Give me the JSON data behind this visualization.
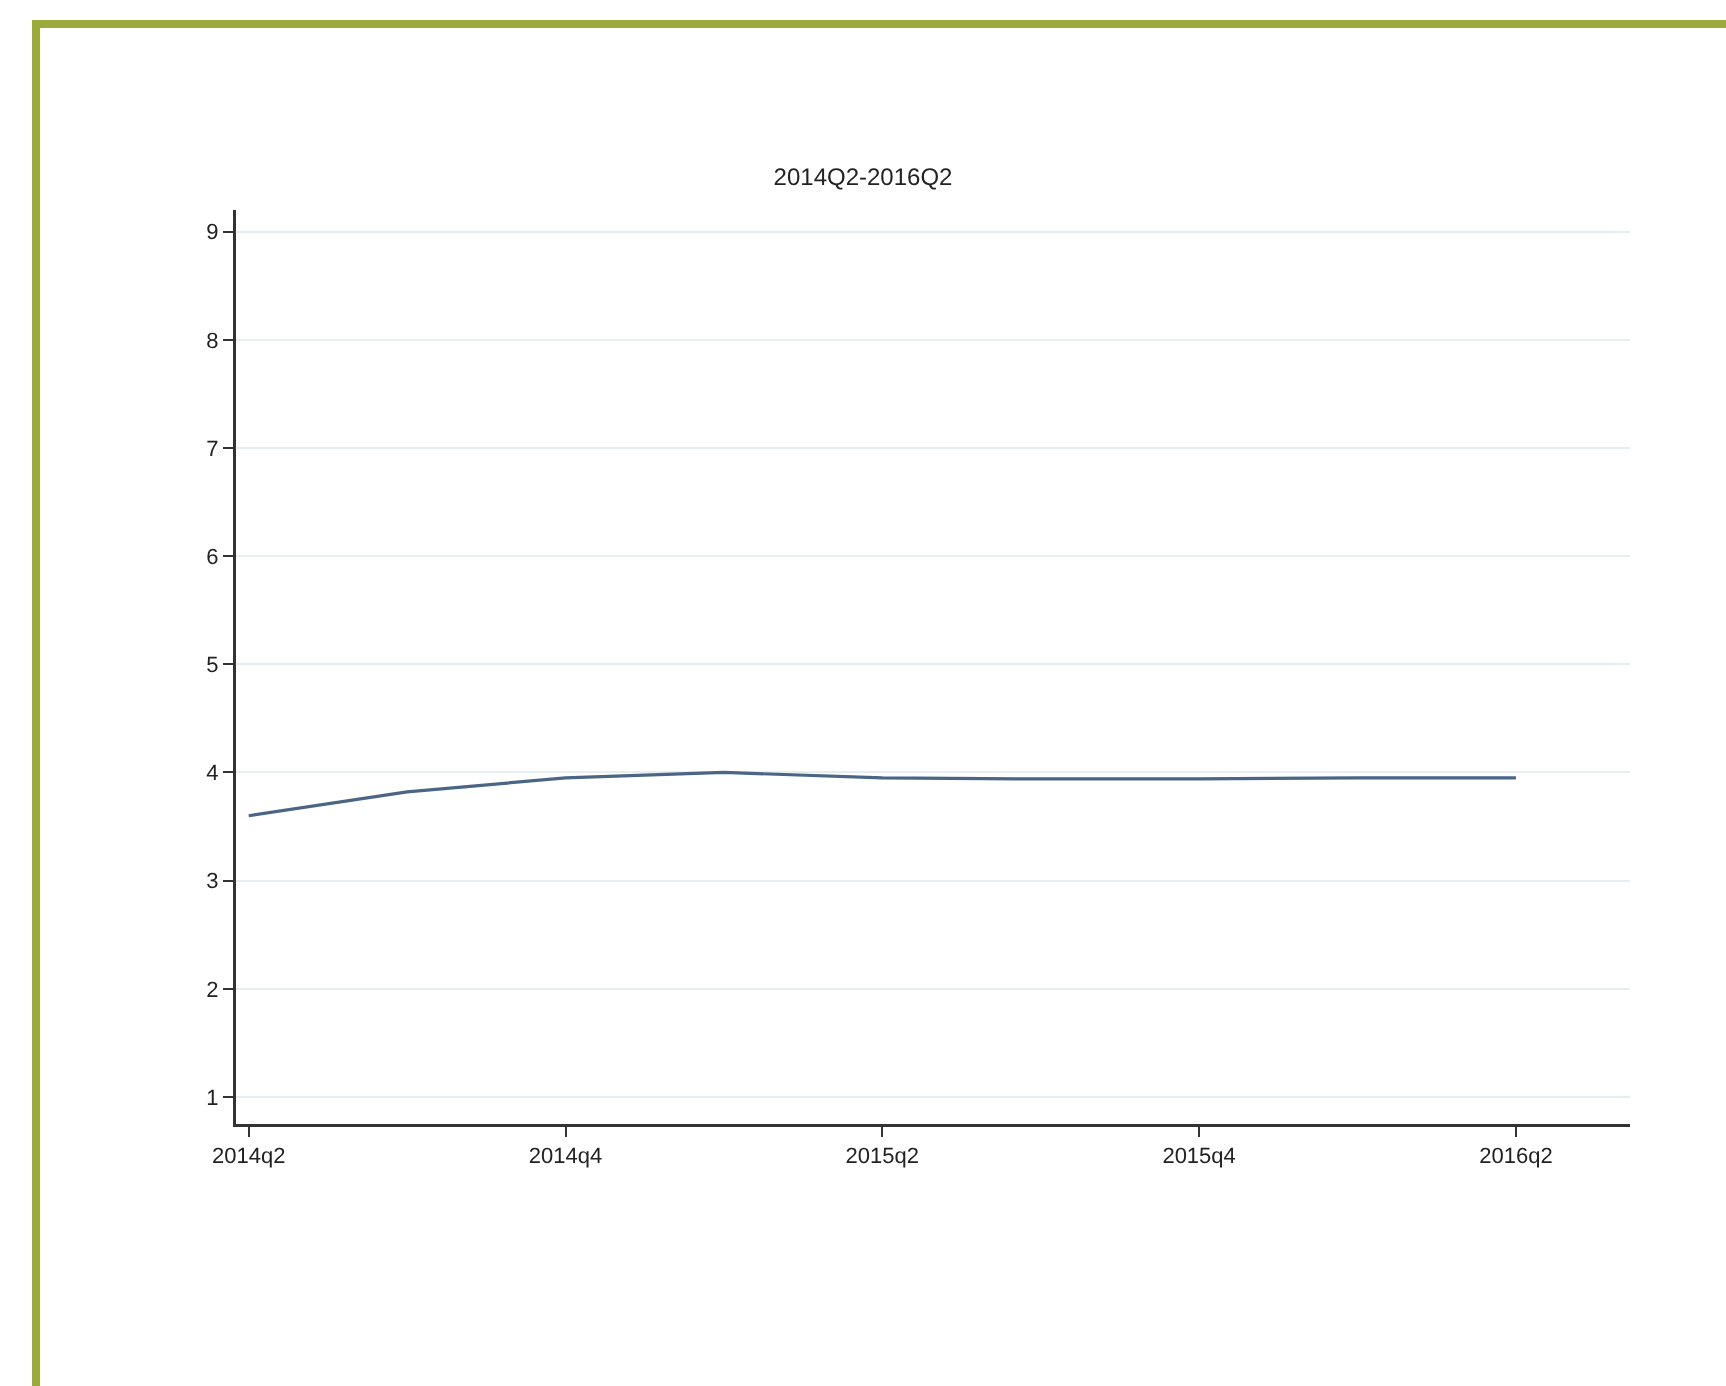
{
  "chart_data": {
    "type": "line",
    "title": "2014Q2-2016Q2",
    "categories": [
      "2014q2",
      null,
      "2014q4",
      null,
      "2015q2",
      null,
      "2015q4",
      null,
      "2016q2"
    ],
    "series": [
      {
        "color": "#4a6684",
        "values": [
          3.6,
          3.82,
          3.95,
          4.0,
          3.95,
          3.94,
          3.94,
          3.95,
          3.95
        ]
      }
    ],
    "ylim": [
      0.75,
      9.2
    ],
    "yticks": [
      1,
      2,
      3,
      4,
      5,
      6,
      7,
      8,
      9
    ],
    "grid": "y",
    "marker": "none",
    "line_style": "solid"
  }
}
